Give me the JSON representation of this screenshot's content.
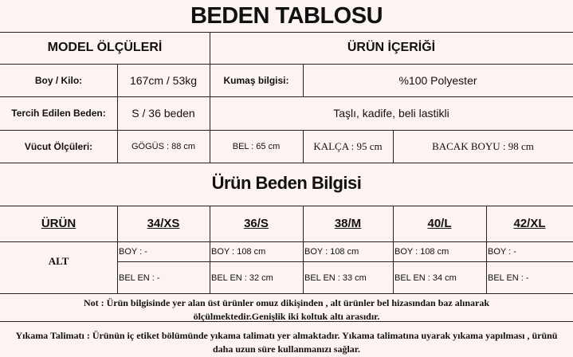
{
  "title": "BEDEN TABLOSU",
  "model": {
    "header": "MODEL ÖLÇÜLERİ",
    "boy_kilo_label": "Boy / Kilo:",
    "boy_kilo_value": "167cm / 53kg",
    "beden_label": "Tercih Edilen Beden:",
    "beden_value": "S / 36 beden",
    "vucut_label": "Vücut Ölçüleri:",
    "gogus": "GÖGÜS : 88 cm",
    "bel": "BEL : 65 cm",
    "kalca": "KALÇA : 95 cm",
    "bacak": "BACAK BOYU : 98 cm"
  },
  "urun": {
    "header": "ÜRÜN İÇERİĞİ",
    "kumas_label": "Kumaş bilgisi:",
    "kumas_value": "%100 Polyester",
    "detay": "Taşlı, kadife, beli lastikli"
  },
  "size_title": "Ürün Beden Bilgisi",
  "size_table": {
    "headers": [
      "ÜRÜN",
      "34/XS",
      "36/S",
      "38/M",
      "40/L",
      "42/XL"
    ],
    "row_label": "ALT",
    "boy": [
      "BOY : -",
      "BOY : 108 cm",
      "BOY : 108 cm",
      "BOY : 108 cm",
      "BOY : -"
    ],
    "bel_en": [
      "BEL EN : -",
      "BEL EN : 32 cm",
      "BEL EN : 33 cm",
      "BEL EN : 34 cm",
      "BEL EN : -"
    ]
  },
  "note": "Not : Ürün bilgisinde yer alan üst ürünler omuz dikişinden , alt ürünler bel hizasından baz alınarak ölçülmektedir.Genişlik iki koltuk altı arasıdır.",
  "wash": "Yıkama Talimatı : Ürünün iç etiket bölümünde yıkama talimatı yer almaktadır. Yıkama talimatına uyarak yıkama yapılması , ürünü daha uzun süre kullanmanızı sağlar."
}
